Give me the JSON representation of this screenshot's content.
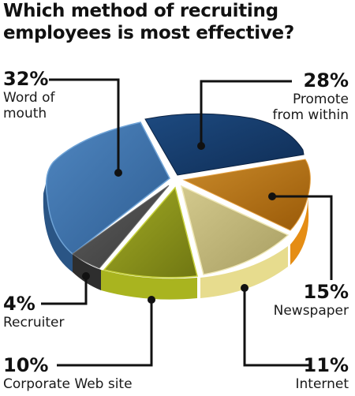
{
  "title_line1": "Which method of recruiting",
  "title_line2": "employees is most effective?",
  "chart_data": {
    "type": "pie",
    "title": "Which method of recruiting employees is most effective?",
    "slices": [
      {
        "label": "Word of mouth",
        "value": 32,
        "value_label": "32%",
        "color": "#3d6ea6"
      },
      {
        "label": "Promote from within",
        "value": 28,
        "value_label": "28%",
        "color": "#163a68"
      },
      {
        "label": "Newspaper",
        "value": 15,
        "value_label": "15%",
        "color": "#b06a10"
      },
      {
        "label": "Internet",
        "value": 11,
        "value_label": "11%",
        "color": "#bdb378"
      },
      {
        "label": "Corporate Web site",
        "value": 10,
        "value_label": "10%",
        "color": "#8a9219"
      },
      {
        "label": "Recruiter",
        "value": 4,
        "value_label": "4%",
        "color": "#4d4d4d"
      }
    ],
    "legend": "none",
    "style": "3d-exploded"
  },
  "labels": {
    "word_of_mouth": {
      "pct": "32%",
      "name_line1": "Word of",
      "name_line2": "mouth"
    },
    "promote": {
      "pct": "28%",
      "name_line1": "Promote",
      "name_line2": "from within"
    },
    "newspaper": {
      "pct": "15%",
      "name": "Newspaper"
    },
    "internet": {
      "pct": "11%",
      "name": "Internet"
    },
    "corporate": {
      "pct": "10%",
      "name": "Corporate Web site"
    },
    "recruiter": {
      "pct": "4%",
      "name": "Recruiter"
    }
  }
}
